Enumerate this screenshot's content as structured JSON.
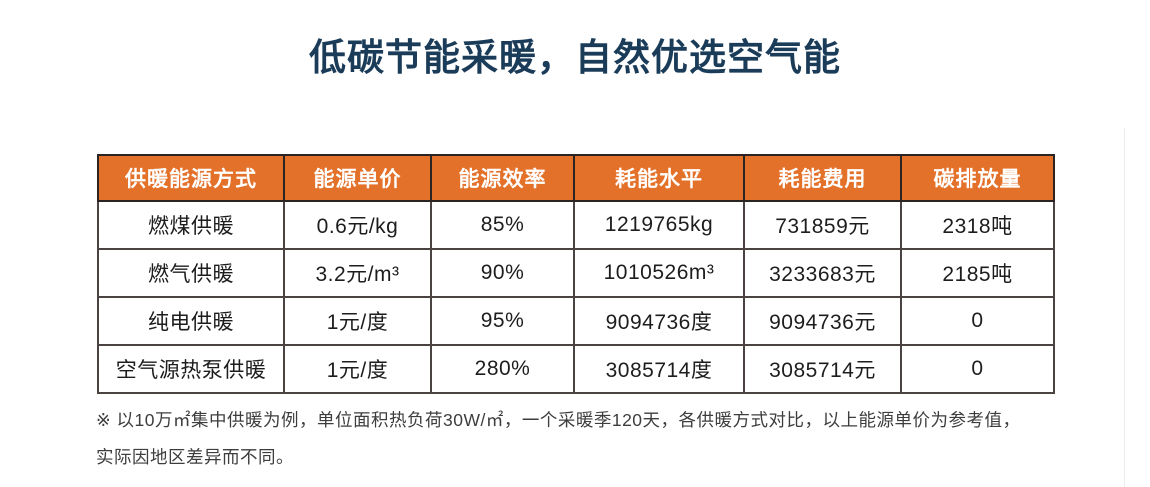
{
  "title": "低碳节能采暖，自然优选空气能",
  "colors": {
    "title_text": "#1B3C59",
    "header_bg": "#E4712A",
    "header_text": "#FFFFFF",
    "header_border": "#2A2422",
    "cell_border": "#4B4242",
    "note_text": "#3D3D3D"
  },
  "table": {
    "headers": [
      "供暖能源方式",
      "能源单价",
      "能源效率",
      "耗能水平",
      "耗能费用",
      "碳排放量"
    ],
    "rows": [
      {
        "cells": [
          "燃煤供暖",
          "0.6元/kg",
          "85%",
          "1219765kg",
          "731859元",
          "2318吨"
        ]
      },
      {
        "cells": [
          "燃气供暖",
          "3.2元/m³",
          "90%",
          "1010526m³",
          "3233683元",
          "2185吨"
        ]
      },
      {
        "cells": [
          "纯电供暖",
          "1元/度",
          "95%",
          "9094736度",
          "9094736元",
          "0"
        ]
      },
      {
        "cells": [
          "空气源热泵供暖",
          "1元/度",
          "280%",
          "3085714度",
          "3085714元",
          "0"
        ]
      }
    ]
  },
  "note": {
    "line1": "※ 以10万㎡集中供暖为例，单位面积热负荷30W/㎡，一个采暖季120天，各供暖方式对比，以上能源单价为参考值，",
    "line2": "实际因地区差异而不同。"
  }
}
